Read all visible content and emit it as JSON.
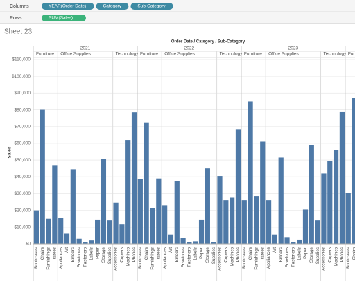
{
  "shelves": {
    "columns_label": "Columns",
    "columns": [
      "YEAR(Order Date)",
      "Category",
      "Sub-Category"
    ],
    "rows_label": "Rows",
    "rows": [
      "SUM(Sales)"
    ]
  },
  "sheet_title": "Sheet 23",
  "chart_data": {
    "type": "bar",
    "header": "Order Date / Category / Sub-Category",
    "y_label": "Sales",
    "color": "#4e79a7",
    "ylim": [
      0,
      110000
    ],
    "yticks": [
      {
        "value": 0,
        "label": "$0"
      },
      {
        "value": 10000,
        "label": "$10,000"
      },
      {
        "value": 20000,
        "label": "$20,000"
      },
      {
        "value": 30000,
        "label": "$30,000"
      },
      {
        "value": 40000,
        "label": "$40,000"
      },
      {
        "value": 50000,
        "label": "$50,000"
      },
      {
        "value": 60000,
        "label": "$60,000"
      },
      {
        "value": 70000,
        "label": "$70,000"
      },
      {
        "value": 80000,
        "label": "$80,000"
      },
      {
        "value": 90000,
        "label": "$90,000"
      },
      {
        "value": 100000,
        "label": "$100,000"
      },
      {
        "value": 110000,
        "label": "$110,000"
      }
    ],
    "grid": true,
    "groups": [
      {
        "year": "2021",
        "categories": [
          {
            "name": "Furniture",
            "subcategories": [
              "Bookcases",
              "Chairs",
              "Furnishings",
              "Tables"
            ],
            "values": [
              20000,
              80000,
              15000,
              47000
            ]
          },
          {
            "name": "Office Supplies",
            "subcategories": [
              "Appliances",
              "Art",
              "Binders",
              "Envelopes",
              "Fasteners",
              "Labels",
              "Paper",
              "Storage",
              "Supplies"
            ],
            "values": [
              15500,
              6000,
              44500,
              3000,
              1000,
              2000,
              14500,
              50500,
              14000
            ]
          },
          {
            "name": "Technology",
            "subcategories": [
              "Accessories",
              "Copiers",
              "Machines",
              "Phones"
            ],
            "values": [
              24500,
              11500,
              62000,
              78500
            ]
          }
        ]
      },
      {
        "year": "2022",
        "categories": [
          {
            "name": "Furniture",
            "subcategories": [
              "Bookcases",
              "Chairs",
              "Furnishings",
              "Tables"
            ],
            "values": [
              38500,
              72500,
              21500,
              39000
            ]
          },
          {
            "name": "Office Supplies",
            "subcategories": [
              "Appliances",
              "Art",
              "Binders",
              "Envelopes",
              "Fasteners",
              "Labels",
              "Paper",
              "Storage",
              "Supplies"
            ],
            "values": [
              23000,
              5500,
              37500,
              3500,
              1000,
              1500,
              14500,
              45000,
              1000
            ]
          },
          {
            "name": "Technology",
            "subcategories": [
              "Accessories",
              "Copiers",
              "Machines",
              "Phones"
            ],
            "values": [
              40500,
              26000,
              27500,
              68500
            ]
          }
        ]
      },
      {
        "year": "2023",
        "categories": [
          {
            "name": "Furniture",
            "subcategories": [
              "Bookcases",
              "Chairs",
              "Furnishings",
              "Tables"
            ],
            "values": [
              26000,
              85000,
              28500,
              61000
            ]
          },
          {
            "name": "Office Supplies",
            "subcategories": [
              "Appliances",
              "Art",
              "Binders",
              "Envelopes",
              "Fasteners",
              "Labels",
              "Paper",
              "Storage",
              "Supplies"
            ],
            "values": [
              26000,
              5500,
              51500,
              4000,
              1000,
              2500,
              20500,
              59000,
              14000
            ]
          },
          {
            "name": "Technology",
            "subcategories": [
              "Accessories",
              "Copiers",
              "Machines",
              "Phones"
            ],
            "values": [
              42000,
              49500,
              56000,
              79000
            ]
          }
        ]
      },
      {
        "year": null,
        "categories": [
          {
            "name": "Furniture",
            "subcategories": [
              "Bookcases",
              "Chairs"
            ],
            "values": [
              30500,
              87000
            ]
          }
        ]
      }
    ]
  }
}
